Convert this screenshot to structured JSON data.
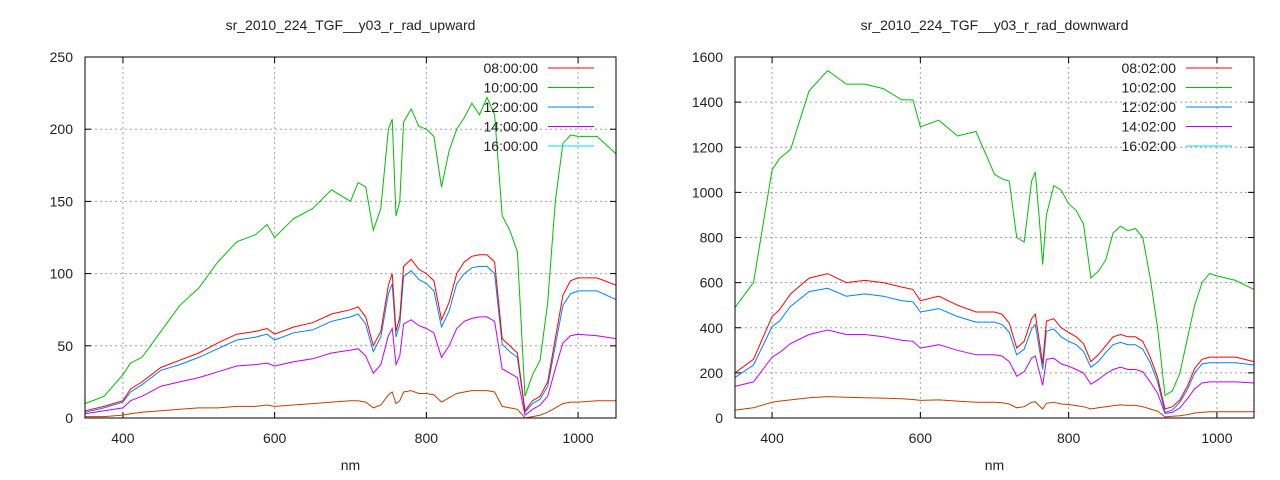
{
  "chart_data": [
    {
      "type": "line",
      "title": "sr_2010_224_TGF__y03_r_rad_upward",
      "xlabel": "nm",
      "ylabel": "",
      "xlim": [
        350,
        1050
      ],
      "ylim": [
        0,
        250
      ],
      "xticks": [
        400,
        600,
        800,
        1000
      ],
      "yticks": [
        0,
        50,
        100,
        150,
        200,
        250
      ],
      "grid": true,
      "legend": "top-right",
      "x": [
        350,
        375,
        400,
        410,
        425,
        450,
        475,
        500,
        525,
        550,
        575,
        590,
        600,
        625,
        650,
        675,
        700,
        710,
        720,
        730,
        740,
        750,
        755,
        760,
        765,
        770,
        780,
        790,
        800,
        810,
        820,
        830,
        840,
        850,
        860,
        870,
        880,
        890,
        900,
        910,
        920,
        930,
        940,
        950,
        960,
        970,
        980,
        990,
        1000,
        1025,
        1050
      ],
      "series": [
        {
          "name": "08:00:00",
          "color": "#ff0000",
          "legend_color": "#ff0000",
          "values": [
            5,
            8,
            12,
            20,
            25,
            35,
            40,
            45,
            52,
            58,
            60,
            62,
            58,
            63,
            66,
            72,
            75,
            77,
            70,
            50,
            60,
            92,
            100,
            60,
            70,
            105,
            110,
            103,
            100,
            95,
            68,
            80,
            100,
            108,
            112,
            113,
            113,
            108,
            55,
            50,
            45,
            5,
            12,
            15,
            25,
            55,
            85,
            95,
            97,
            97,
            92
          ]
        },
        {
          "name": "10:00:00",
          "color": "#00c000",
          "legend_color": "#00c000",
          "values": [
            10,
            15,
            30,
            38,
            42,
            60,
            78,
            90,
            108,
            122,
            127,
            134,
            125,
            138,
            145,
            158,
            150,
            163,
            160,
            130,
            145,
            200,
            207,
            140,
            150,
            205,
            214,
            202,
            200,
            195,
            160,
            185,
            200,
            208,
            218,
            210,
            222,
            210,
            140,
            130,
            115,
            15,
            30,
            40,
            80,
            150,
            190,
            196,
            195,
            195,
            183
          ]
        },
        {
          "name": "12:00:00",
          "color": "#0080ff",
          "legend_color": "#0080ff",
          "values": [
            4,
            7,
            11,
            18,
            23,
            33,
            37,
            42,
            48,
            54,
            56,
            58,
            54,
            59,
            61,
            67,
            70,
            72,
            65,
            46,
            56,
            86,
            93,
            56,
            65,
            98,
            102,
            96,
            93,
            88,
            63,
            74,
            93,
            100,
            104,
            105,
            105,
            100,
            51,
            46,
            42,
            4,
            10,
            13,
            22,
            50,
            78,
            86,
            88,
            88,
            82
          ]
        },
        {
          "name": "14:00:00",
          "color": "#c000ff",
          "legend_color": "#c000ff",
          "values": [
            3,
            5,
            7,
            12,
            15,
            22,
            25,
            28,
            32,
            36,
            37,
            38,
            36,
            39,
            41,
            45,
            47,
            48,
            43,
            31,
            37,
            57,
            62,
            37,
            43,
            65,
            68,
            64,
            62,
            59,
            42,
            50,
            62,
            67,
            69,
            70,
            70,
            67,
            34,
            31,
            28,
            2,
            6,
            9,
            15,
            34,
            52,
            57,
            58,
            57,
            55
          ]
        },
        {
          "name": "16:00:00",
          "color": "#c04000",
          "legend_color": "#00e0e0",
          "values": [
            1,
            1,
            2,
            3,
            4,
            5,
            6,
            7,
            7,
            8,
            8,
            9,
            8,
            9,
            10,
            11,
            12,
            12,
            11,
            7,
            9,
            16,
            18,
            10,
            12,
            18,
            19,
            17,
            17,
            16,
            11,
            14,
            17,
            18,
            19,
            19,
            19,
            18,
            8,
            7,
            6,
            0,
            1,
            2,
            4,
            7,
            10,
            11,
            11,
            12,
            12
          ]
        }
      ]
    },
    {
      "type": "line",
      "title": "sr_2010_224_TGF__y03_r_rad_downward",
      "xlabel": "nm",
      "ylabel": "",
      "xlim": [
        350,
        1050
      ],
      "ylim": [
        0,
        1600
      ],
      "xticks": [
        400,
        600,
        800,
        1000
      ],
      "yticks": [
        0,
        200,
        400,
        600,
        800,
        1000,
        1200,
        1400,
        1600
      ],
      "grid": true,
      "legend": "top-right",
      "x": [
        350,
        375,
        400,
        410,
        425,
        450,
        475,
        500,
        525,
        550,
        575,
        590,
        600,
        625,
        650,
        675,
        700,
        710,
        720,
        730,
        740,
        750,
        755,
        760,
        765,
        770,
        780,
        790,
        800,
        810,
        820,
        830,
        840,
        850,
        860,
        870,
        880,
        890,
        900,
        910,
        920,
        930,
        940,
        950,
        960,
        970,
        980,
        990,
        1000,
        1025,
        1050
      ],
      "series": [
        {
          "name": "08:02:00",
          "color": "#ff0000",
          "legend_color": "#ff0000",
          "values": [
            200,
            260,
            450,
            480,
            550,
            620,
            640,
            600,
            610,
            600,
            580,
            570,
            520,
            540,
            500,
            470,
            470,
            460,
            420,
            310,
            340,
            440,
            460,
            350,
            240,
            430,
            440,
            400,
            380,
            360,
            330,
            250,
            280,
            320,
            360,
            370,
            360,
            360,
            340,
            270,
            180,
            40,
            50,
            80,
            140,
            220,
            260,
            270,
            270,
            270,
            250
          ]
        },
        {
          "name": "10:02:00",
          "color": "#00c000",
          "legend_color": "#00c000",
          "values": [
            490,
            600,
            1100,
            1150,
            1190,
            1450,
            1540,
            1480,
            1480,
            1460,
            1410,
            1410,
            1290,
            1320,
            1250,
            1270,
            1080,
            1060,
            1050,
            800,
            780,
            1050,
            1090,
            900,
            680,
            900,
            1030,
            1010,
            950,
            920,
            860,
            620,
            650,
            700,
            820,
            850,
            830,
            840,
            800,
            620,
            400,
            100,
            120,
            200,
            350,
            500,
            600,
            640,
            630,
            610,
            570
          ]
        },
        {
          "name": "12:02:00",
          "color": "#0080ff",
          "legend_color": "#0080ff",
          "values": [
            180,
            235,
            405,
            430,
            495,
            560,
            575,
            540,
            550,
            540,
            520,
            515,
            470,
            485,
            450,
            425,
            425,
            415,
            380,
            280,
            305,
            395,
            415,
            315,
            215,
            385,
            395,
            360,
            340,
            325,
            295,
            225,
            250,
            290,
            325,
            335,
            325,
            325,
            305,
            245,
            160,
            25,
            35,
            70,
            125,
            200,
            240,
            245,
            245,
            245,
            235
          ]
        },
        {
          "name": "14:02:00",
          "color": "#c000ff",
          "legend_color": "#c000ff",
          "values": [
            140,
            160,
            270,
            290,
            330,
            370,
            390,
            370,
            370,
            360,
            345,
            340,
            310,
            325,
            300,
            280,
            280,
            275,
            250,
            185,
            205,
            265,
            275,
            210,
            145,
            260,
            265,
            240,
            230,
            215,
            200,
            150,
            170,
            195,
            215,
            225,
            215,
            215,
            205,
            160,
            110,
            20,
            25,
            45,
            85,
            130,
            155,
            160,
            160,
            160,
            155
          ]
        },
        {
          "name": "16:02:00",
          "color": "#c04000",
          "legend_color": "#00e0e0",
          "values": [
            35,
            45,
            70,
            75,
            80,
            90,
            95,
            92,
            90,
            88,
            85,
            82,
            78,
            80,
            75,
            70,
            70,
            68,
            62,
            45,
            50,
            70,
            72,
            55,
            40,
            65,
            70,
            62,
            60,
            55,
            50,
            40,
            45,
            50,
            55,
            58,
            56,
            56,
            50,
            40,
            30,
            5,
            8,
            10,
            15,
            22,
            25,
            28,
            28,
            28,
            28
          ]
        }
      ]
    }
  ]
}
